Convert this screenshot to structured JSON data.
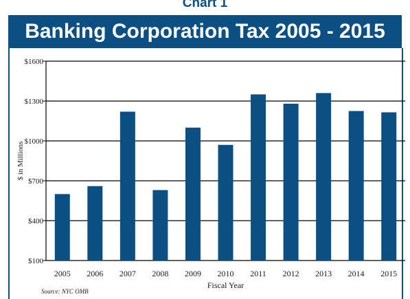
{
  "header": {
    "chart_label": "Chart 1",
    "title": "Banking Corporation Tax 2005 - 2015"
  },
  "source": "Source: NYC OMB",
  "colors": {
    "banner": "#0b4f83",
    "bar": "#0b4f83",
    "text": "#1a1a1a"
  },
  "chart_data": {
    "type": "bar",
    "categories": [
      "2005",
      "2006",
      "2007",
      "2008",
      "2009",
      "2010",
      "2011",
      "2012",
      "2013",
      "2014",
      "2015"
    ],
    "values": [
      600,
      660,
      1220,
      630,
      1100,
      970,
      1350,
      1280,
      1360,
      1225,
      1215
    ],
    "title": "Banking Corporation Tax 2005 - 2015",
    "xlabel": "Fiscal Year",
    "ylabel": "$ in Millions",
    "ylim": [
      100,
      1600
    ],
    "yticks": [
      100,
      400,
      700,
      1000,
      1300,
      1600
    ],
    "ytick_labels": [
      "$100",
      "$400",
      "$700",
      "$1000",
      "$1300",
      "$1600"
    ],
    "grid": true
  }
}
